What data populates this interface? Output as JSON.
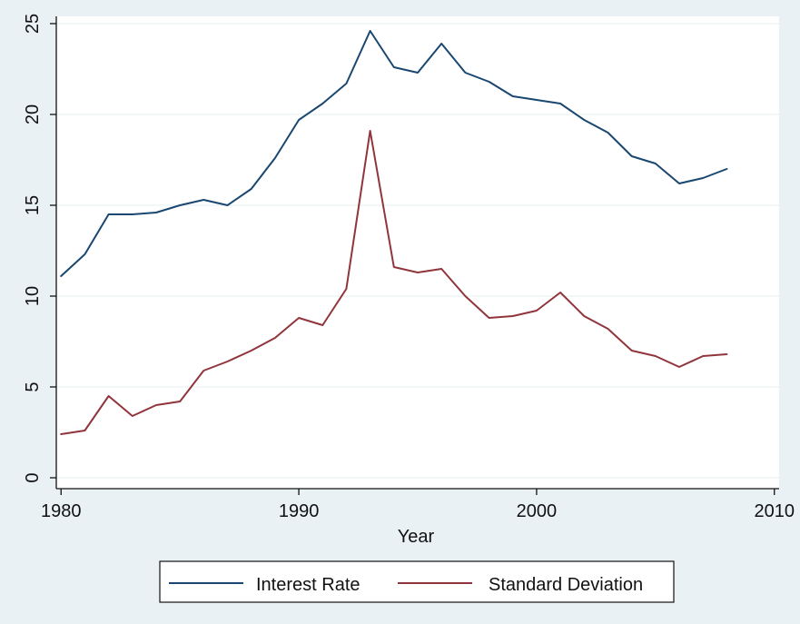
{
  "chart_data": {
    "type": "line",
    "title": "",
    "xlabel": "Year",
    "ylabel": "",
    "xlim": [
      1980,
      2010
    ],
    "ylim": [
      0,
      25
    ],
    "xticks": [
      1980,
      1990,
      2000,
      2010
    ],
    "yticks": [
      0,
      5,
      10,
      15,
      20,
      25
    ],
    "x_tick_labels": [
      "1980",
      "1990",
      "2000",
      "2010"
    ],
    "y_tick_labels": [
      "0",
      "5",
      "10",
      "15",
      "20",
      "25"
    ],
    "grid": "horizontal",
    "legend_position": "bottom",
    "x": [
      1980,
      1981,
      1982,
      1983,
      1984,
      1985,
      1986,
      1987,
      1988,
      1989,
      1990,
      1991,
      1992,
      1993,
      1994,
      1995,
      1996,
      1997,
      1998,
      1999,
      2000,
      2001,
      2002,
      2003,
      2004,
      2005,
      2006,
      2007,
      2008
    ],
    "series": [
      {
        "name": "Interest Rate",
        "color": "#1a476f",
        "values": [
          11.1,
          12.3,
          14.5,
          14.5,
          14.6,
          15.0,
          15.3,
          15.0,
          15.9,
          17.6,
          19.7,
          20.6,
          21.7,
          24.6,
          22.6,
          22.3,
          23.9,
          22.3,
          21.8,
          21.0,
          20.8,
          20.6,
          19.7,
          19.0,
          17.7,
          17.3,
          16.2,
          16.5,
          17.0
        ]
      },
      {
        "name": "Standard Deviation",
        "color": "#90353b",
        "values": [
          2.4,
          2.6,
          4.5,
          3.4,
          4.0,
          4.2,
          5.9,
          6.4,
          7.0,
          7.7,
          8.8,
          8.4,
          10.4,
          19.1,
          11.6,
          11.3,
          11.5,
          10.0,
          8.8,
          8.9,
          9.2,
          10.2,
          8.9,
          8.2,
          7.0,
          6.7,
          6.1,
          6.7,
          6.8
        ]
      }
    ]
  }
}
